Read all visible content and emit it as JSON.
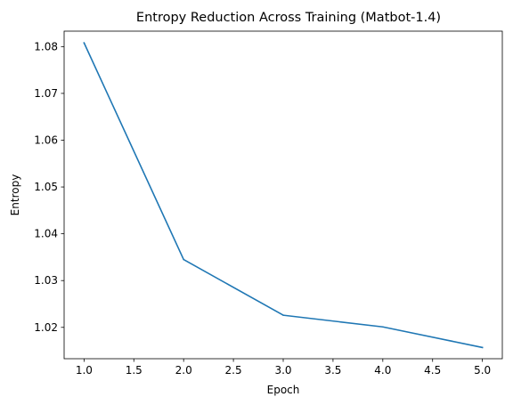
{
  "chart_data": {
    "type": "line",
    "title": "Entropy Reduction Across Training (Matbot-1.4)",
    "xlabel": "Epoch",
    "ylabel": "Entropy",
    "xlim": [
      0.8,
      5.2
    ],
    "ylim": [
      1.0133,
      1.0833
    ],
    "xticks": [
      1.0,
      1.5,
      2.0,
      2.5,
      3.0,
      3.5,
      4.0,
      4.5,
      5.0
    ],
    "xtick_labels": [
      "1.0",
      "1.5",
      "2.0",
      "2.5",
      "3.0",
      "3.5",
      "4.0",
      "4.5",
      "5.0"
    ],
    "yticks": [
      1.02,
      1.03,
      1.04,
      1.05,
      1.06,
      1.07,
      1.08
    ],
    "ytick_labels": [
      "1.02",
      "1.03",
      "1.04",
      "1.05",
      "1.06",
      "1.07",
      "1.08"
    ],
    "grid": false,
    "legend": "none",
    "series": [
      {
        "color": "#1f77b4",
        "x": [
          1,
          2,
          3,
          4,
          5
        ],
        "y": [
          1.0808,
          1.0345,
          1.0226,
          1.0201,
          1.0157
        ]
      }
    ]
  }
}
